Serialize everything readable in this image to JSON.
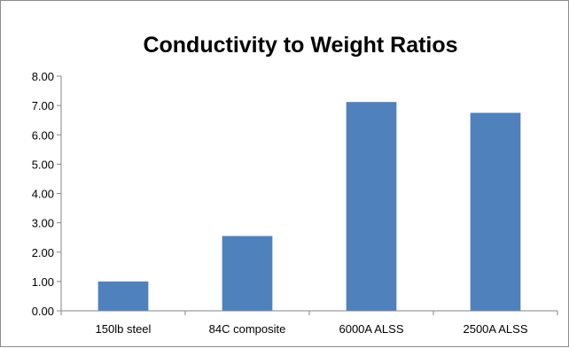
{
  "chart_data": {
    "type": "bar",
    "title": "Conductivity to Weight Ratios",
    "xlabel": "",
    "ylabel": "",
    "categories": [
      "150lb steel",
      "84C composite",
      "6000A ALSS",
      "2500A ALSS"
    ],
    "values": [
      1.0,
      2.55,
      7.12,
      6.75
    ],
    "ylim": [
      0,
      8
    ],
    "yticks": [
      "0.00",
      "1.00",
      "2.00",
      "3.00",
      "4.00",
      "5.00",
      "6.00",
      "7.00",
      "8.00"
    ],
    "grid": false,
    "legend": "none",
    "bar_color": "#4f81bd"
  }
}
